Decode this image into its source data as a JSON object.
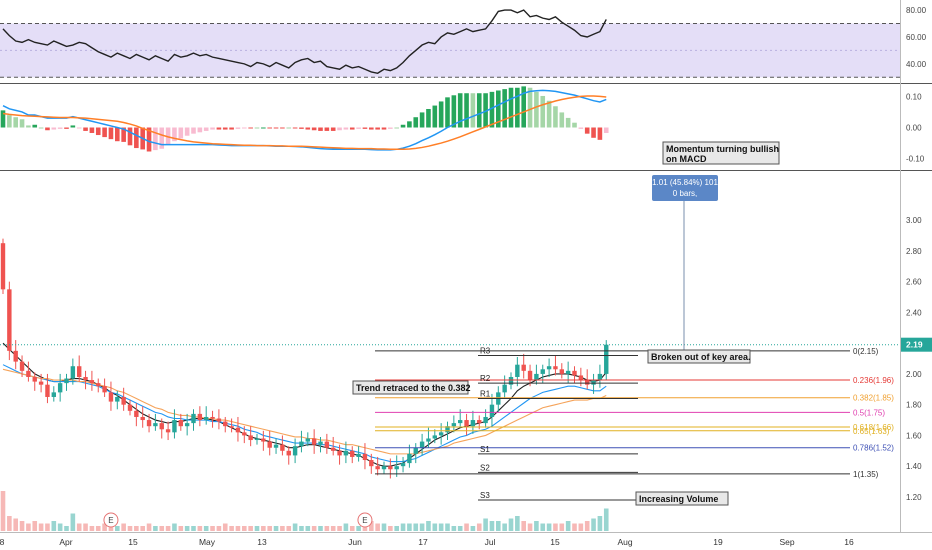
{
  "chart_data": {
    "type": "candlestick",
    "title": "",
    "x_ticks": [
      "8",
      "Apr",
      "15",
      "May",
      "13",
      "Jun",
      "17",
      "Jul",
      "15",
      "Aug",
      "19",
      "Sep",
      "16"
    ],
    "price_axis": {
      "ylim": [
        1.05,
        3.3
      ],
      "ticks": [
        "1.20",
        "1.40",
        "1.60",
        "1.80",
        "2.00",
        "2.20",
        "2.40",
        "2.60",
        "2.80",
        "3.00"
      ]
    },
    "rsi_axis": {
      "ylim": [
        28,
        86
      ],
      "ticks": [
        "40.00",
        "60.00",
        "80.00"
      ],
      "band": [
        30,
        70
      ]
    },
    "macd_axis": {
      "ylim": [
        -0.13,
        0.13
      ],
      "ticks": [
        "-0.10",
        "0.00",
        "0.10"
      ]
    },
    "last_price": "2.19",
    "series": [
      {
        "kind": "candles",
        "color_up": "#26a69a",
        "color_down": "#ef5350",
        "closes": [
          2.55,
          2.15,
          2.08,
          2.02,
          1.98,
          1.95,
          1.93,
          1.85,
          1.88,
          1.94,
          1.97,
          2.05,
          1.98,
          1.96,
          1.94,
          1.92,
          1.88,
          1.82,
          1.85,
          1.8,
          1.76,
          1.72,
          1.7,
          1.66,
          1.68,
          1.64,
          1.62,
          1.7,
          1.66,
          1.68,
          1.74,
          1.7,
          1.72,
          1.71,
          1.69,
          1.66,
          1.65,
          1.62,
          1.6,
          1.57,
          1.58,
          1.56,
          1.52,
          1.54,
          1.5,
          1.47,
          1.53,
          1.56,
          1.58,
          1.54,
          1.56,
          1.52,
          1.5,
          1.47,
          1.5,
          1.46,
          1.48,
          1.44,
          1.4,
          1.38,
          1.4,
          1.38,
          1.4,
          1.42,
          1.48,
          1.52,
          1.56,
          1.58,
          1.6,
          1.62,
          1.66,
          1.68,
          1.7,
          1.66,
          1.7,
          1.68,
          1.72,
          1.8,
          1.88,
          1.93,
          1.98,
          2.06,
          2.02,
          1.96,
          2.0,
          2.03,
          2.05,
          2.03,
          2.0,
          2.02,
          1.99,
          1.96,
          1.93,
          1.96,
          2.0,
          2.19
        ]
      },
      {
        "kind": "line",
        "name": "",
        "color": "#222222",
        "values": [
          2.2,
          2.16,
          2.12,
          2.08,
          2.04,
          2.0,
          1.98,
          1.96,
          1.95,
          1.95,
          1.96,
          1.97,
          1.97,
          1.96,
          1.95,
          1.93,
          1.91,
          1.88,
          1.86,
          1.83,
          1.8,
          1.77,
          1.74,
          1.72,
          1.7,
          1.69,
          1.68,
          1.69,
          1.69,
          1.7,
          1.71,
          1.71,
          1.71,
          1.7,
          1.69,
          1.67,
          1.65,
          1.63,
          1.61,
          1.59,
          1.58,
          1.57,
          1.56,
          1.55,
          1.54,
          1.52,
          1.52,
          1.53,
          1.54,
          1.54,
          1.53,
          1.52,
          1.51,
          1.5,
          1.49,
          1.48,
          1.47,
          1.45,
          1.43,
          1.41,
          1.4,
          1.4,
          1.41,
          1.42,
          1.45,
          1.48,
          1.51,
          1.54,
          1.57,
          1.59,
          1.61,
          1.63,
          1.65,
          1.66,
          1.67,
          1.68,
          1.69,
          1.72,
          1.76,
          1.8,
          1.84,
          1.89,
          1.92,
          1.94,
          1.96,
          1.98,
          1.99,
          2.0,
          2.0,
          2.0,
          1.99,
          1.98,
          1.96,
          1.95,
          1.96,
          2.01
        ]
      },
      {
        "kind": "line",
        "name": "",
        "color": "#2196f3",
        "values": [
          2.06,
          2.04,
          2.02,
          2.0,
          1.99,
          1.98,
          1.97,
          1.96,
          1.95,
          1.95,
          1.95,
          1.95,
          1.95,
          1.94,
          1.93,
          1.92,
          1.9,
          1.88,
          1.87,
          1.85,
          1.83,
          1.81,
          1.79,
          1.77,
          1.75,
          1.74,
          1.72,
          1.71,
          1.71,
          1.7,
          1.7,
          1.7,
          1.7,
          1.69,
          1.69,
          1.68,
          1.67,
          1.66,
          1.64,
          1.63,
          1.62,
          1.6,
          1.59,
          1.58,
          1.57,
          1.56,
          1.55,
          1.55,
          1.55,
          1.55,
          1.54,
          1.54,
          1.53,
          1.52,
          1.51,
          1.5,
          1.49,
          1.48,
          1.46,
          1.45,
          1.44,
          1.43,
          1.43,
          1.43,
          1.44,
          1.45,
          1.47,
          1.49,
          1.51,
          1.53,
          1.55,
          1.57,
          1.59,
          1.6,
          1.62,
          1.63,
          1.64,
          1.66,
          1.69,
          1.72,
          1.75,
          1.78,
          1.81,
          1.84,
          1.86,
          1.88,
          1.89,
          1.9,
          1.91,
          1.92,
          1.92,
          1.91,
          1.9,
          1.89,
          1.89,
          1.92
        ]
      },
      {
        "kind": "line",
        "name": "",
        "color": "#f5a35a",
        "values": [
          2.03,
          2.02,
          2.01,
          2.0,
          1.99,
          1.98,
          1.97,
          1.97,
          1.96,
          1.96,
          1.96,
          1.96,
          1.95,
          1.95,
          1.94,
          1.93,
          1.92,
          1.91,
          1.89,
          1.88,
          1.86,
          1.84,
          1.82,
          1.8,
          1.78,
          1.77,
          1.75,
          1.74,
          1.73,
          1.73,
          1.72,
          1.72,
          1.71,
          1.71,
          1.7,
          1.7,
          1.69,
          1.68,
          1.67,
          1.66,
          1.65,
          1.64,
          1.63,
          1.62,
          1.61,
          1.6,
          1.59,
          1.59,
          1.58,
          1.58,
          1.57,
          1.57,
          1.56,
          1.55,
          1.54,
          1.54,
          1.53,
          1.52,
          1.51,
          1.5,
          1.49,
          1.48,
          1.48,
          1.48,
          1.48,
          1.48,
          1.49,
          1.5,
          1.51,
          1.52,
          1.53,
          1.55,
          1.56,
          1.57,
          1.58,
          1.59,
          1.6,
          1.62,
          1.64,
          1.66,
          1.68,
          1.7,
          1.72,
          1.74,
          1.76,
          1.78,
          1.79,
          1.8,
          1.81,
          1.82,
          1.83,
          1.83,
          1.83,
          1.84,
          1.84,
          1.86
        ]
      },
      {
        "kind": "rsi",
        "name": "",
        "color": "#222222",
        "values": [
          66,
          61,
          57,
          56,
          58,
          56,
          55,
          54,
          57,
          55,
          53,
          54,
          56,
          55,
          52,
          49,
          47,
          45,
          48,
          46,
          44,
          47,
          45,
          43,
          46,
          44,
          42,
          47,
          45,
          46,
          48,
          46,
          47,
          45,
          44,
          43,
          42,
          41,
          40,
          38,
          41,
          40,
          38,
          41,
          39,
          37,
          41,
          43,
          44,
          41,
          42,
          38,
          37,
          36,
          39,
          37,
          38,
          36,
          34,
          33,
          36,
          35,
          37,
          41,
          46,
          50,
          54,
          56,
          55,
          60,
          63,
          62,
          64,
          66,
          64,
          65,
          66,
          72,
          79,
          80,
          80,
          78,
          80,
          75,
          76,
          74,
          73,
          75,
          71,
          68,
          65,
          61,
          60,
          62,
          64,
          73
        ]
      },
      {
        "kind": "macd",
        "name": "",
        "color": "#2196f3",
        "values": [
          0.07,
          0.06,
          0.055,
          0.05,
          0.04,
          0.04,
          0.035,
          0.03,
          0.03,
          0.03,
          0.03,
          0.035,
          0.03,
          0.025,
          0.02,
          0.015,
          0.01,
          0.005,
          0.0,
          -0.005,
          -0.015,
          -0.025,
          -0.035,
          -0.045,
          -0.05,
          -0.055,
          -0.055,
          -0.055,
          -0.055,
          -0.055,
          -0.055,
          -0.055,
          -0.055,
          -0.055,
          -0.056,
          -0.057,
          -0.058,
          -0.058,
          -0.058,
          -0.058,
          -0.058,
          -0.058,
          -0.059,
          -0.06,
          -0.06,
          -0.06,
          -0.061,
          -0.062,
          -0.064,
          -0.066,
          -0.068,
          -0.069,
          -0.07,
          -0.07,
          -0.07,
          -0.07,
          -0.07,
          -0.07,
          -0.071,
          -0.072,
          -0.072,
          -0.072,
          -0.07,
          -0.066,
          -0.06,
          -0.052,
          -0.042,
          -0.033,
          -0.023,
          -0.012,
          0.0,
          0.01,
          0.02,
          0.028,
          0.036,
          0.044,
          0.052,
          0.062,
          0.072,
          0.082,
          0.092,
          0.1,
          0.11,
          0.116,
          0.118,
          0.119,
          0.118,
          0.116,
          0.112,
          0.108,
          0.104,
          0.098,
          0.092,
          0.086,
          0.082,
          0.09
        ]
      },
      {
        "kind": "signal",
        "name": "",
        "color": "#ff7f27",
        "values": [
          0.045,
          0.042,
          0.04,
          0.038,
          0.037,
          0.036,
          0.035,
          0.034,
          0.033,
          0.032,
          0.032,
          0.032,
          0.031,
          0.03,
          0.028,
          0.026,
          0.024,
          0.022,
          0.02,
          0.016,
          0.011,
          0.005,
          -0.003,
          -0.01,
          -0.017,
          -0.024,
          -0.03,
          -0.035,
          -0.039,
          -0.043,
          -0.046,
          -0.048,
          -0.05,
          -0.052,
          -0.053,
          -0.054,
          -0.055,
          -0.056,
          -0.057,
          -0.057,
          -0.058,
          -0.058,
          -0.058,
          -0.059,
          -0.059,
          -0.06,
          -0.06,
          -0.06,
          -0.061,
          -0.062,
          -0.063,
          -0.064,
          -0.065,
          -0.066,
          -0.067,
          -0.067,
          -0.068,
          -0.068,
          -0.068,
          -0.069,
          -0.069,
          -0.07,
          -0.07,
          -0.07,
          -0.069,
          -0.067,
          -0.064,
          -0.06,
          -0.055,
          -0.05,
          -0.044,
          -0.037,
          -0.03,
          -0.022,
          -0.014,
          -0.006,
          0.002,
          0.01,
          0.018,
          0.026,
          0.034,
          0.042,
          0.05,
          0.058,
          0.066,
          0.073,
          0.079,
          0.085,
          0.09,
          0.094,
          0.097,
          0.1,
          0.101,
          0.101,
          0.1,
          0.098
        ]
      }
    ],
    "volume": [
      16,
      6,
      5,
      4,
      3,
      4,
      3,
      3,
      4,
      3,
      2,
      7,
      3,
      3,
      2,
      2,
      3,
      2,
      2,
      3,
      2,
      2,
      2,
      3,
      2,
      2,
      2,
      3,
      2,
      2,
      2,
      2,
      2,
      2,
      2,
      3,
      2,
      2,
      2,
      2,
      2,
      2,
      2,
      2,
      2,
      2,
      3,
      2,
      2,
      2,
      2,
      2,
      2,
      2,
      3,
      2,
      2,
      3,
      4,
      3,
      3,
      2,
      2,
      3,
      3,
      3,
      3,
      4,
      3,
      3,
      3,
      2,
      2,
      3,
      2,
      3,
      5,
      4,
      4,
      3,
      5,
      6,
      4,
      3,
      4,
      3,
      3,
      3,
      3,
      4,
      3,
      3,
      4,
      5,
      6,
      9
    ],
    "earnings_markers": {
      "label": "E",
      "bar_index": [
        17,
        57
      ]
    },
    "fibonacci": {
      "levels": [
        {
          "label": "0(2.15)",
          "value": 2.15,
          "color": "#333333"
        },
        {
          "label": "0.236(1.96)",
          "value": 1.96,
          "color": "#e53935"
        },
        {
          "label": "0.382(1.85)",
          "value": 1.845,
          "color": "#f0a030"
        },
        {
          "label": "0.5(1.75)",
          "value": 1.75,
          "color": "#e040b0"
        },
        {
          "label": "0.618(1.66)",
          "value": 1.655,
          "color": "#e0b020"
        },
        {
          "label": "0.65(1.63)",
          "value": 1.63,
          "color": "#e0b020"
        },
        {
          "label": "0.786(1.52)",
          "value": 1.52,
          "color": "#3f51b5"
        },
        {
          "label": "1(1.35)",
          "value": 1.35,
          "color": "#333333"
        }
      ]
    },
    "pivots": [
      {
        "label": "R3",
        "value": 2.12
      },
      {
        "label": "R2",
        "value": 1.94
      },
      {
        "label": "R1",
        "value": 1.84
      },
      {
        "label": "S1",
        "value": 1.48
      },
      {
        "label": "S2",
        "value": 1.36
      },
      {
        "label": "S3",
        "value": 1.18
      }
    ],
    "annotations": [
      {
        "text": "Momentum turning bullish\non MACD"
      },
      {
        "text": "Trend retraced to the 0.382"
      },
      {
        "text": "Broken out of key area."
      },
      {
        "text": "Increasing Volume"
      }
    ],
    "measure": {
      "line1": "1.01 (45.84%) 101",
      "line2": "0 bars,"
    }
  }
}
